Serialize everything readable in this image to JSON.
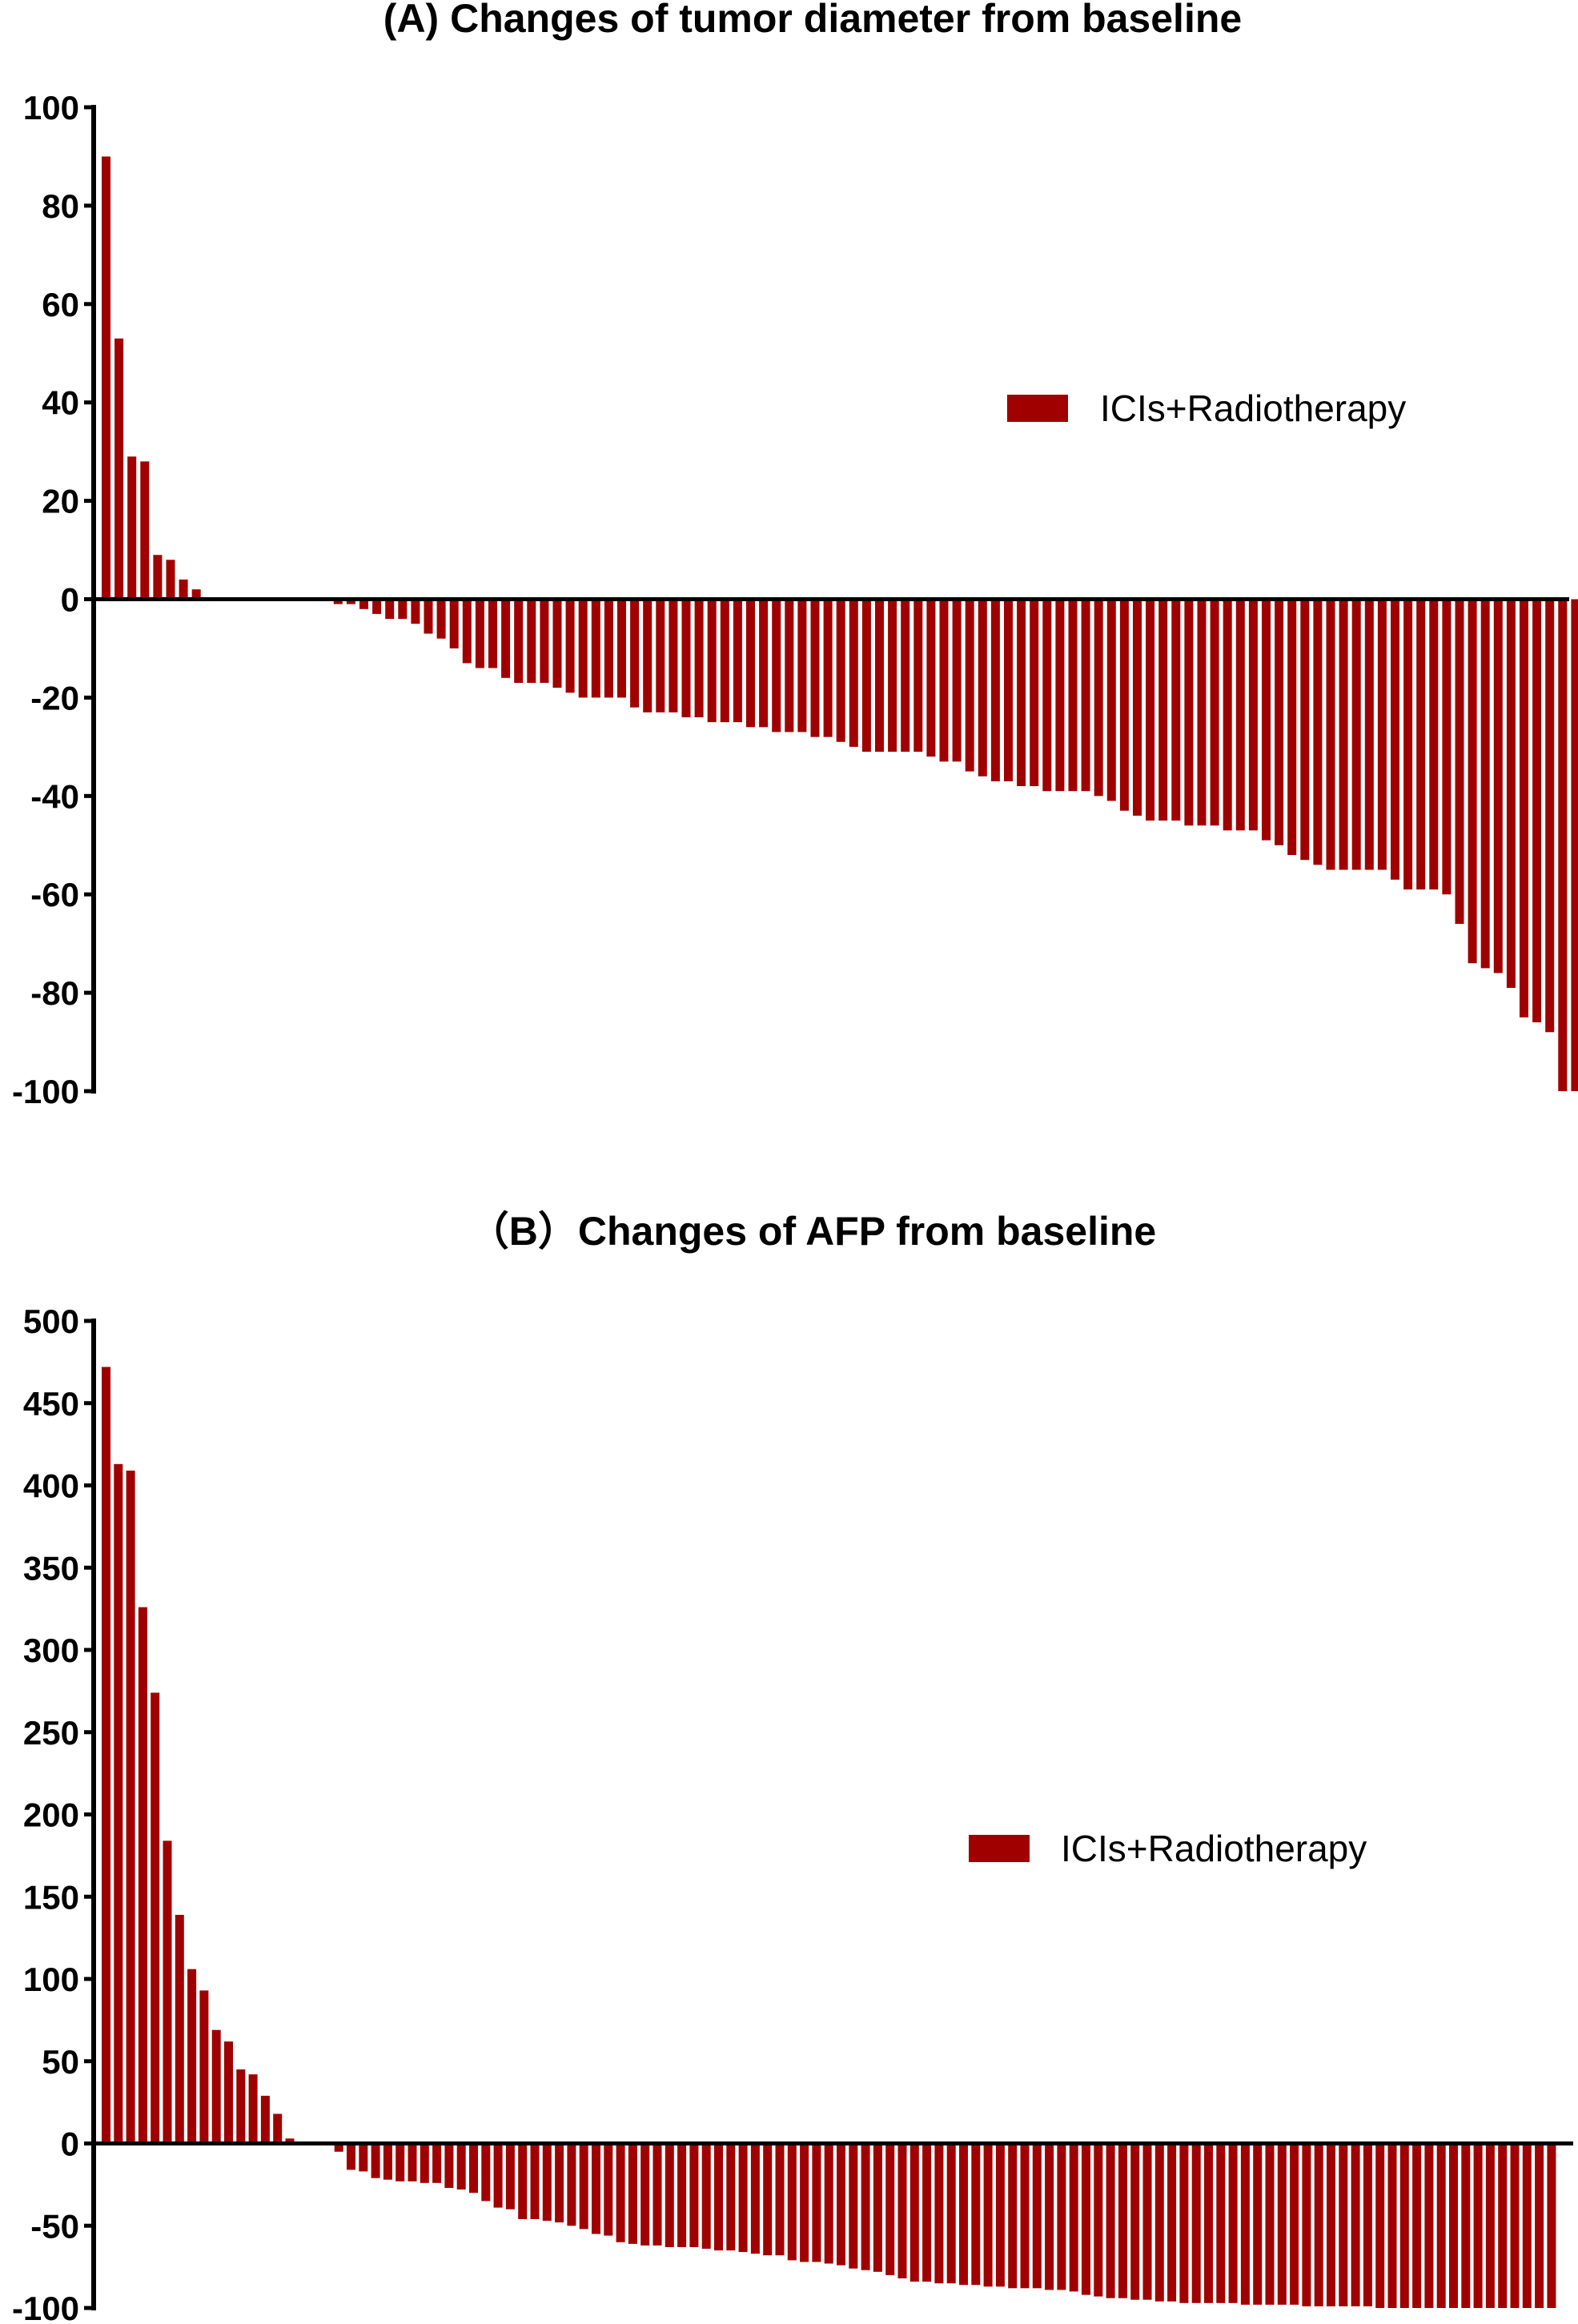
{
  "chart_data": [
    {
      "type": "bar",
      "title": "(A) Changes of tumor diameter from baseline",
      "xlabel": "",
      "ylabel": "",
      "ylim": [
        -100,
        100
      ],
      "yticks": [
        100,
        80,
        60,
        40,
        20,
        0,
        -20,
        -40,
        -60,
        -80,
        -100
      ],
      "ytick_labels": [
        "100",
        "80",
        "60",
        "40",
        "20",
        "0",
        "-20",
        "-40",
        "-60",
        "-80",
        "-100"
      ],
      "grid": false,
      "legend_position": "right",
      "color": "#a00000",
      "series": [
        {
          "name": "ICIs+Radiotherapy",
          "values": [
            90,
            53,
            29,
            28,
            9,
            8,
            4,
            2,
            0,
            0,
            0,
            0,
            0,
            0,
            0,
            0,
            0,
            0,
            -1,
            -1,
            -2,
            -3,
            -4,
            -4,
            -5,
            -7,
            -8,
            -10,
            -13,
            -14,
            -14,
            -16,
            -17,
            -17,
            -17,
            -18,
            -19,
            -20,
            -20,
            -20,
            -20,
            -22,
            -23,
            -23,
            -23,
            -24,
            -24,
            -25,
            -25,
            -25,
            -26,
            -26,
            -27,
            -27,
            -27,
            -28,
            -28,
            -29,
            -30,
            -31,
            -31,
            -31,
            -31,
            -31,
            -32,
            -33,
            -33,
            -35,
            -36,
            -37,
            -37,
            -38,
            -38,
            -39,
            -39,
            -39,
            -39,
            -40,
            -41,
            -43,
            -44,
            -45,
            -45,
            -45,
            -46,
            -46,
            -46,
            -47,
            -47,
            -47,
            -49,
            -50,
            -52,
            -53,
            -54,
            -55,
            -55,
            -55,
            -55,
            -55,
            -57,
            -59,
            -59,
            -59,
            -60,
            -66,
            -74,
            -75,
            -76,
            -79,
            -85,
            -86,
            -88,
            -100,
            -100,
            -100,
            -100
          ]
        }
      ]
    },
    {
      "type": "bar",
      "title": "（B）Changes of AFP from baseline",
      "xlabel": "",
      "ylabel": "",
      "ylim": [
        -100,
        500
      ],
      "yticks": [
        500,
        450,
        400,
        350,
        300,
        250,
        200,
        150,
        100,
        50,
        0,
        -50,
        -100
      ],
      "ytick_labels": [
        "500",
        "450",
        "400",
        "350",
        "300",
        "250",
        "200",
        "150",
        "100",
        "50",
        "0",
        "-50",
        "-100"
      ],
      "grid": false,
      "legend_position": "right",
      "color": "#a00000",
      "series": [
        {
          "name": "ICIs+Radiotherapy",
          "values": [
            472,
            413,
            409,
            326,
            274,
            184,
            139,
            106,
            93,
            69,
            62,
            45,
            42,
            29,
            18,
            3,
            0,
            0,
            0,
            -5,
            -16,
            -17,
            -21,
            -22,
            -23,
            -23,
            -24,
            -24,
            -27,
            -28,
            -30,
            -35,
            -39,
            -40,
            -46,
            -46,
            -47,
            -48,
            -50,
            -52,
            -55,
            -56,
            -60,
            -61,
            -62,
            -62,
            -63,
            -63,
            -63,
            -64,
            -65,
            -65,
            -66,
            -67,
            -68,
            -68,
            -71,
            -72,
            -72,
            -73,
            -74,
            -76,
            -77,
            -78,
            -80,
            -82,
            -84,
            -84,
            -85,
            -85,
            -86,
            -86,
            -87,
            -87,
            -88,
            -88,
            -88,
            -89,
            -89,
            -90,
            -92,
            -93,
            -94,
            -94,
            -95,
            -95,
            -96,
            -96,
            -97,
            -97,
            -97,
            -97,
            -97,
            -98,
            -98,
            -98,
            -98,
            -98,
            -99,
            -99,
            -99,
            -99,
            -99,
            -99,
            -100,
            -100,
            -100,
            -100,
            -100,
            -100,
            -100,
            -100,
            -100,
            -100,
            -100,
            -100,
            -100,
            -100,
            -100
          ]
        }
      ]
    }
  ]
}
